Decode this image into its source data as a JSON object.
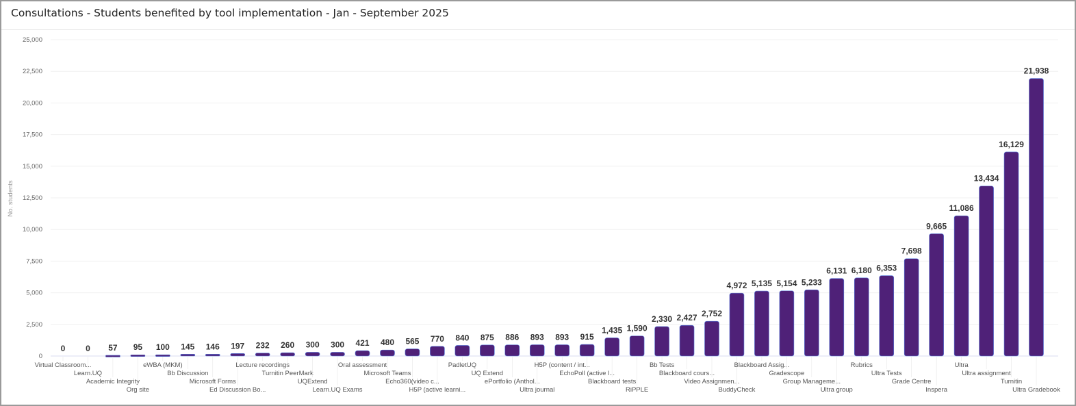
{
  "chart_data": {
    "type": "bar",
    "title": "Consultations - Students benefited by tool implementation - Jan - September 2025",
    "xlabel": "",
    "ylabel": "No. students",
    "ylim": [
      0,
      25000
    ],
    "yticks": [
      0,
      2500,
      5000,
      7500,
      10000,
      12500,
      15000,
      17500,
      20000,
      22500,
      25000
    ],
    "ytick_labels": [
      "0",
      "2,500",
      "5,000",
      "7,500",
      "10,000",
      "12,500",
      "15,000",
      "17,500",
      "20,000",
      "22,500",
      "25,000"
    ],
    "grid": true,
    "bar_color": "#4f2178",
    "categories": [
      "Virtual Classroom...",
      "Learn.UQ",
      "Academic Integrity",
      "Org site",
      "eWBA (MKM)",
      "Bb Discussion",
      "Microsoft Forms",
      "Ed Discussion Bo...",
      "Lecture recordings",
      "Turnitin PeerMark",
      "UQExtend",
      "Learn.UQ Exams",
      "Oral assessment",
      "Microsoft Teams",
      "Echo360(video c...",
      "H5P (active learni...",
      "PadletUQ",
      "UQ Extend",
      "ePortfolio (Anthol...",
      "Ultra journal",
      "H5P (content / int...",
      "EchoPoll (active l...",
      "Blackboard tests",
      "RiPPLE",
      "Bb Tests",
      "Blackboard cours...",
      "Video Assignmen...",
      "BuddyCheck",
      "Blackboard Assig...",
      "Gradescope",
      "Group Manageme...",
      "Ultra group",
      "Rubrics",
      "Ultra Tests",
      "Grade Centre",
      "Inspera",
      "Ultra",
      "Ultra assignment",
      "Turnitin",
      "Ultra Gradebook"
    ],
    "values": [
      0,
      0,
      57,
      95,
      100,
      145,
      146,
      197,
      232,
      260,
      300,
      300,
      421,
      480,
      565,
      770,
      840,
      875,
      886,
      893,
      893,
      915,
      1435,
      1590,
      2330,
      2427,
      2752,
      4972,
      5135,
      5154,
      5233,
      6131,
      6180,
      6353,
      7698,
      9665,
      11086,
      13434,
      16129,
      21938
    ],
    "data_labels": [
      "0",
      "0",
      "57",
      "95",
      "100",
      "145",
      "146",
      "197",
      "232",
      "260",
      "300",
      "300",
      "421",
      "480",
      "565",
      "770",
      "840",
      "875",
      "886",
      "893",
      "893",
      "915",
      "1,435",
      "1,590",
      "2,330",
      "2,427",
      "2,752",
      "4,972",
      "5,135",
      "5,154",
      "5,233",
      "6,131",
      "6,180",
      "6,353",
      "7,698",
      "9,665",
      "11,086",
      "13,434",
      "16,129",
      "21,938"
    ]
  }
}
